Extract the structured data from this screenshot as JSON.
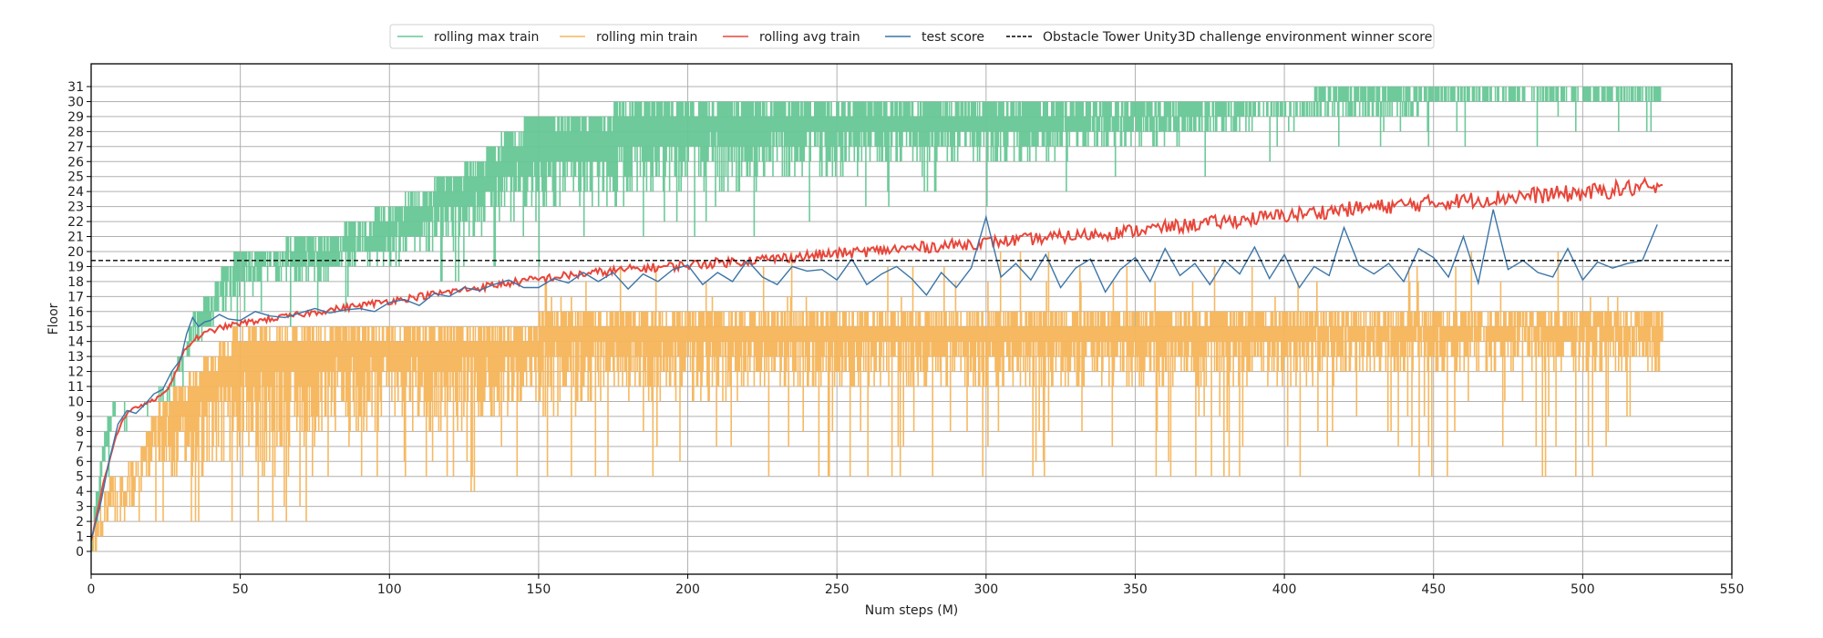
{
  "chart_data": {
    "type": "line",
    "title": "",
    "xlabel": "Num steps (M)",
    "ylabel": "Floor",
    "xlim": [
      0,
      550
    ],
    "ylim": [
      -1.8,
      33
    ],
    "x_ticks": [
      0,
      50,
      100,
      150,
      200,
      250,
      300,
      350,
      400,
      450,
      500,
      550
    ],
    "y_ticks": [
      0,
      1,
      2,
      3,
      4,
      5,
      6,
      7,
      8,
      9,
      10,
      11,
      12,
      13,
      14,
      15,
      16,
      17,
      18,
      19,
      20,
      21,
      22,
      23,
      24,
      25,
      26,
      27,
      28,
      29,
      30,
      31
    ],
    "grid": true,
    "legend_position": "top-center",
    "series": [
      {
        "name": "rolling max train",
        "color": "#66c795",
        "style": "filled-band",
        "x": [
          0,
          2,
          4,
          6,
          8,
          10,
          15,
          20,
          25,
          28,
          30,
          32,
          35,
          40,
          45,
          50,
          60,
          70,
          80,
          90,
          100,
          110,
          120,
          130,
          140,
          150,
          160,
          170,
          180,
          190,
          200,
          220,
          240,
          260,
          280,
          300,
          320,
          340,
          360,
          380,
          400,
          420,
          440,
          460,
          480,
          500,
          520,
          527
        ],
        "upper": [
          1,
          4,
          7,
          9,
          10,
          10,
          10,
          10,
          11,
          12,
          13,
          14,
          16,
          17,
          19,
          20,
          20,
          21,
          21,
          22,
          23,
          24,
          25,
          26,
          28,
          29,
          29,
          29,
          30,
          30,
          30,
          30,
          30,
          30,
          30,
          30,
          30,
          30,
          30,
          30,
          30,
          31,
          31,
          31,
          31,
          31,
          31,
          31
        ],
        "lower": [
          0,
          2,
          5,
          7,
          9,
          10,
          10,
          10,
          10,
          11,
          12,
          13,
          14,
          15,
          16,
          17,
          18,
          18,
          18,
          19,
          19,
          20,
          20,
          21,
          22,
          22,
          23,
          23,
          23,
          24,
          24,
          24,
          25,
          25,
          26,
          26,
          26,
          27,
          27,
          28,
          29,
          29,
          29,
          30,
          30,
          30,
          30,
          30
        ]
      },
      {
        "name": "rolling min train",
        "color": "#f5b55a",
        "style": "filled-band",
        "x": [
          0,
          2,
          4,
          6,
          8,
          10,
          15,
          18,
          20,
          25,
          30,
          35,
          40,
          50,
          60,
          80,
          100,
          120,
          140,
          160,
          180,
          200,
          250,
          300,
          350,
          400,
          450,
          500,
          527
        ],
        "upper": [
          1,
          2,
          3,
          5,
          5,
          5,
          6,
          7,
          9,
          10,
          11,
          12,
          13,
          15,
          15,
          15,
          15,
          15,
          15,
          16,
          16,
          16,
          16,
          16,
          16,
          16,
          16,
          16,
          16
        ],
        "lower": [
          0,
          0,
          1,
          2,
          2,
          2,
          3,
          5,
          5,
          5,
          5,
          5,
          5,
          5,
          6,
          7,
          8,
          8,
          9,
          9,
          10,
          10,
          11,
          11,
          11,
          11,
          12,
          12,
          12
        ]
      },
      {
        "name": "rolling avg train",
        "color": "#e8463a",
        "style": "line",
        "x": [
          0,
          2,
          4,
          6,
          8,
          10,
          12,
          15,
          18,
          20,
          22,
          25,
          28,
          30,
          32,
          35,
          40,
          45,
          50,
          60,
          70,
          80,
          90,
          100,
          120,
          140,
          160,
          180,
          200,
          220,
          240,
          260,
          280,
          300,
          320,
          340,
          360,
          380,
          400,
          420,
          440,
          460,
          480,
          500,
          510,
          520,
          527
        ],
        "y": [
          0.7,
          2.5,
          4.5,
          6,
          7.5,
          8.5,
          9.2,
          9.6,
          9.8,
          10,
          10.2,
          10.6,
          11.8,
          12.8,
          13.6,
          14.2,
          14.7,
          15.0,
          15.2,
          15.5,
          15.8,
          16.1,
          16.4,
          16.7,
          17.3,
          17.9,
          18.4,
          18.8,
          19.1,
          19.4,
          19.7,
          20.0,
          20.3,
          20.6,
          20.9,
          21.2,
          21.6,
          22.0,
          22.4,
          22.8,
          23.1,
          23.4,
          23.7,
          23.9,
          24.1,
          24.3,
          24.0
        ]
      },
      {
        "name": "test score",
        "color": "#3a75a8",
        "style": "line",
        "x": [
          0,
          3,
          6,
          9,
          12,
          15,
          18,
          21,
          24,
          27,
          30,
          32,
          34,
          36,
          38,
          40,
          43,
          46,
          50,
          55,
          60,
          65,
          70,
          75,
          80,
          85,
          90,
          95,
          100,
          105,
          110,
          115,
          120,
          125,
          130,
          135,
          140,
          145,
          150,
          155,
          160,
          165,
          170,
          175,
          180,
          185,
          190,
          195,
          200,
          205,
          210,
          215,
          220,
          225,
          230,
          235,
          240,
          245,
          250,
          255,
          260,
          265,
          270,
          275,
          280,
          285,
          290,
          295,
          300,
          305,
          310,
          315,
          320,
          325,
          330,
          335,
          340,
          345,
          350,
          355,
          360,
          365,
          370,
          375,
          380,
          385,
          390,
          395,
          400,
          405,
          410,
          415,
          420,
          425,
          430,
          435,
          440,
          445,
          450,
          455,
          460,
          465,
          470,
          475,
          480,
          485,
          490,
          495,
          500,
          505,
          510,
          515,
          520,
          525
        ],
        "y": [
          0.8,
          3,
          6,
          8.5,
          9.4,
          9.2,
          9.8,
          10.5,
          10.8,
          12,
          12.8,
          14.5,
          15.6,
          15,
          15.3,
          15.4,
          15.8,
          15.5,
          15.4,
          16,
          15.7,
          15.6,
          15.9,
          16.2,
          15.9,
          16.1,
          16.2,
          16.0,
          16.6,
          16.8,
          16.4,
          17.2,
          17.0,
          17.6,
          17.4,
          17.8,
          18.1,
          17.6,
          17.6,
          18.2,
          17.9,
          18.6,
          18.0,
          18.6,
          17.5,
          18.5,
          18.0,
          18.8,
          19.1,
          17.8,
          18.6,
          18.0,
          19.4,
          18.3,
          17.8,
          19.0,
          18.7,
          18.8,
          18.1,
          19.5,
          17.8,
          18.5,
          19.0,
          18.2,
          17.1,
          18.6,
          17.6,
          18.9,
          22.3,
          18.3,
          19.2,
          18.1,
          19.8,
          17.6,
          18.9,
          19.5,
          17.3,
          18.8,
          19.6,
          18.0,
          20.2,
          18.4,
          19.2,
          17.8,
          19.4,
          18.5,
          20.3,
          18.2,
          19.8,
          17.6,
          19.0,
          18.4,
          21.6,
          19.1,
          18.5,
          19.2,
          18.0,
          20.2,
          19.6,
          18.3,
          21.0,
          17.9,
          22.8,
          18.8,
          19.4,
          18.6,
          18.3,
          20.2,
          18.1,
          19.3,
          18.9,
          19.2,
          19.4,
          21.8
        ]
      },
      {
        "name": "Obstacle Tower Unity3D challenge environment winner score",
        "color": "#000000",
        "style": "dashed-hline",
        "y": 19.4
      }
    ]
  },
  "legend": {
    "items": [
      {
        "label": "rolling max train",
        "color": "#66c795",
        "style": "solid"
      },
      {
        "label": "rolling min train",
        "color": "#f5b55a",
        "style": "solid"
      },
      {
        "label": "rolling avg train",
        "color": "#e8463a",
        "style": "solid"
      },
      {
        "label": "test score",
        "color": "#3a75a8",
        "style": "solid"
      },
      {
        "label": "Obstacle Tower Unity3D challenge environment winner score",
        "color": "#000000",
        "style": "dashed"
      }
    ]
  }
}
